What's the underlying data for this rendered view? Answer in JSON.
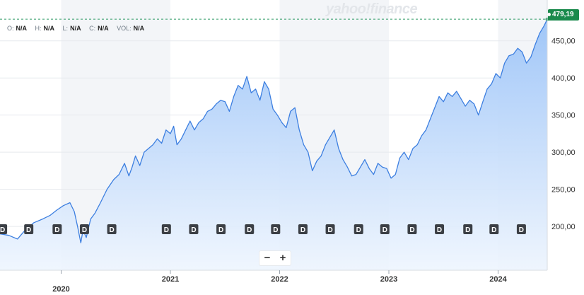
{
  "watermark": "yahoo!finance",
  "ohlc": [
    {
      "key": "O:",
      "value": "N/A"
    },
    {
      "key": "H:",
      "value": "N/A"
    },
    {
      "key": "L:",
      "value": "N/A"
    },
    {
      "key": "C:",
      "value": "N/A"
    },
    {
      "key": "VOL:",
      "value": "N/A"
    }
  ],
  "zoom": {
    "minus": "−",
    "plus": "+"
  },
  "current_price_label": "479,19",
  "dividend_marker_label": "D",
  "colors": {
    "line": "#3d7fe0",
    "area_top": "#9cc4f8",
    "area_bottom": "#eef5fe",
    "badge": "#1a8a4c"
  },
  "chart_data": {
    "type": "area",
    "x_tick_labels": [
      "2020",
      "2021",
      "2022",
      "2023",
      "2024"
    ],
    "x_ticks": [
      2020.0,
      2021.0,
      2022.0,
      2023.0,
      2024.0
    ],
    "xlim": [
      2019.44,
      2024.45
    ],
    "y_tick_labels": [
      "200,00",
      "250,00",
      "300,00",
      "350,00",
      "400,00",
      "450,00"
    ],
    "y_ticks": [
      200,
      250,
      300,
      350,
      400,
      450
    ],
    "ylim": [
      141,
      505
    ],
    "current_price": 479.19,
    "grid": true,
    "series": [
      {
        "x": [
          2019.44,
          2019.52,
          2019.6,
          2019.67,
          2019.75,
          2019.83,
          2019.9,
          2019.96,
          2020.02,
          2020.08,
          2020.12,
          2020.15,
          2020.18,
          2020.2,
          2020.23,
          2020.27,
          2020.31,
          2020.36,
          2020.42,
          2020.48,
          2020.53,
          2020.58,
          2020.62,
          2020.65,
          2020.68,
          2020.72,
          2020.76,
          2020.8,
          2020.84,
          2020.88,
          2020.92,
          2020.96,
          2021.0,
          2021.03,
          2021.06,
          2021.1,
          2021.14,
          2021.18,
          2021.22,
          2021.26,
          2021.3,
          2021.34,
          2021.38,
          2021.42,
          2021.46,
          2021.5,
          2021.54,
          2021.58,
          2021.62,
          2021.66,
          2021.7,
          2021.74,
          2021.78,
          2021.82,
          2021.86,
          2021.9,
          2021.94,
          2021.98,
          2022.02,
          2022.06,
          2022.1,
          2022.14,
          2022.18,
          2022.22,
          2022.26,
          2022.3,
          2022.34,
          2022.38,
          2022.42,
          2022.46,
          2022.5,
          2022.54,
          2022.58,
          2022.62,
          2022.66,
          2022.7,
          2022.74,
          2022.78,
          2022.82,
          2022.86,
          2022.9,
          2022.94,
          2022.98,
          2023.02,
          2023.06,
          2023.1,
          2023.14,
          2023.18,
          2023.22,
          2023.26,
          2023.3,
          2023.34,
          2023.38,
          2023.42,
          2023.46,
          2023.5,
          2023.54,
          2023.58,
          2023.62,
          2023.66,
          2023.7,
          2023.74,
          2023.78,
          2023.82,
          2023.86,
          2023.9,
          2023.94,
          2023.98,
          2024.02,
          2024.06,
          2024.1,
          2024.14,
          2024.18,
          2024.22,
          2024.26,
          2024.3,
          2024.34,
          2024.38,
          2024.42,
          2024.45
        ],
        "y": [
          190,
          188,
          183,
          195,
          205,
          210,
          215,
          222,
          228,
          232,
          220,
          200,
          178,
          195,
          185,
          210,
          218,
          232,
          250,
          263,
          270,
          285,
          268,
          280,
          295,
          282,
          300,
          305,
          310,
          318,
          312,
          330,
          325,
          335,
          310,
          318,
          330,
          342,
          330,
          340,
          345,
          355,
          358,
          365,
          370,
          368,
          355,
          375,
          390,
          385,
          402,
          380,
          385,
          370,
          395,
          385,
          358,
          350,
          340,
          333,
          355,
          360,
          330,
          310,
          300,
          275,
          288,
          295,
          310,
          320,
          330,
          305,
          290,
          280,
          268,
          270,
          280,
          290,
          278,
          270,
          285,
          280,
          278,
          265,
          270,
          292,
          300,
          290,
          305,
          310,
          322,
          330,
          345,
          360,
          375,
          368,
          380,
          375,
          382,
          372,
          362,
          370,
          365,
          350,
          368,
          385,
          392,
          406,
          400,
          420,
          430,
          432,
          440,
          435,
          420,
          428,
          445,
          460,
          470,
          479
        ]
      }
    ],
    "dividend_markers_x": [
      2019.46,
      2019.7,
      2019.96,
      2020.21,
      2020.46,
      2020.96,
      2021.21,
      2021.46,
      2021.72,
      2021.96,
      2022.21,
      2022.46,
      2022.72,
      2022.96,
      2023.21,
      2023.46,
      2023.72,
      2023.96,
      2024.21
    ]
  }
}
